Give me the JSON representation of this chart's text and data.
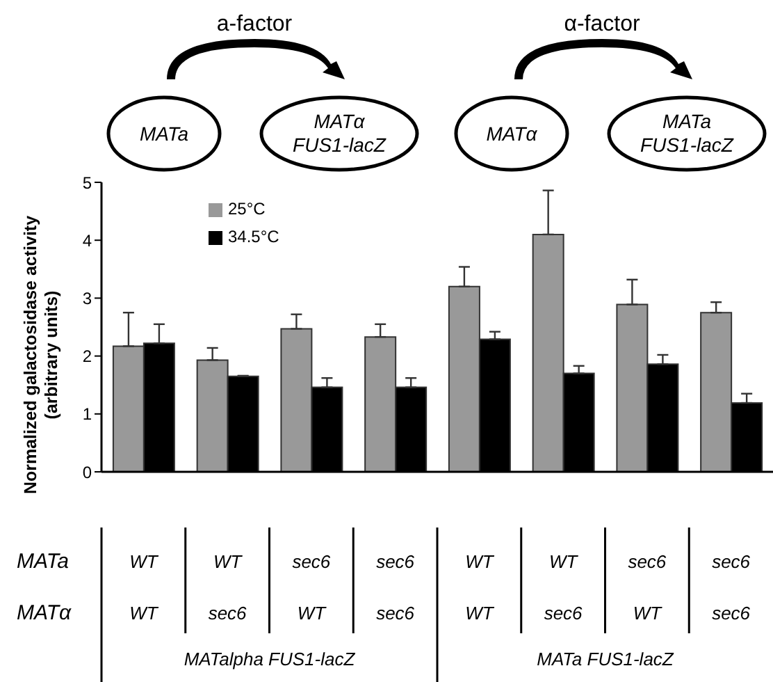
{
  "chart_data": {
    "type": "bar",
    "ylabel": "Normalized galactosidase activity (arbitrary units)",
    "categories": [
      "WT\nWT",
      "WT\nsec6",
      "sec6\nWT",
      "sec6\nsec6",
      "WT\nWT",
      "WT\nsec6",
      "sec6\nWT",
      "sec6\nsec6"
    ],
    "series": [
      {
        "name": "25°C",
        "color": "#999999",
        "values": [
          2.17,
          1.93,
          2.47,
          2.33,
          3.2,
          4.1,
          2.89,
          2.75
        ],
        "errors": [
          [
            2.17,
            2.75
          ],
          [
            1.93,
            2.14
          ],
          [
            2.47,
            2.72
          ],
          [
            2.33,
            2.55
          ],
          [
            3.2,
            3.54
          ],
          [
            4.1,
            4.86
          ],
          [
            2.89,
            3.32
          ],
          [
            2.75,
            2.93
          ]
        ]
      },
      {
        "name": "34.5°C",
        "color": "#000000",
        "values": [
          2.22,
          1.65,
          1.46,
          1.46,
          2.29,
          1.7,
          1.86,
          1.19
        ],
        "errors": [
          [
            2.22,
            2.55
          ],
          [
            1.65,
            1.66
          ],
          [
            1.46,
            1.62
          ],
          [
            1.46,
            1.62
          ],
          [
            2.29,
            2.42
          ],
          [
            1.7,
            1.83
          ],
          [
            1.86,
            2.02
          ],
          [
            1.19,
            1.35
          ]
        ]
      }
    ],
    "ylim": [
      0,
      5
    ],
    "yticks": [
      0,
      1,
      2,
      3,
      4,
      5
    ],
    "grid": false,
    "legend": "top left",
    "annotations": [
      "a-factor",
      "α-factor",
      "MATa",
      "MATα\nFUS1-lacZ",
      "MATα",
      "MATa\nFUS1-lacZ",
      "MATa",
      "MATα",
      "MATalpha FUS1-lacZ",
      "MATa FUS1-lacZ"
    ]
  }
}
